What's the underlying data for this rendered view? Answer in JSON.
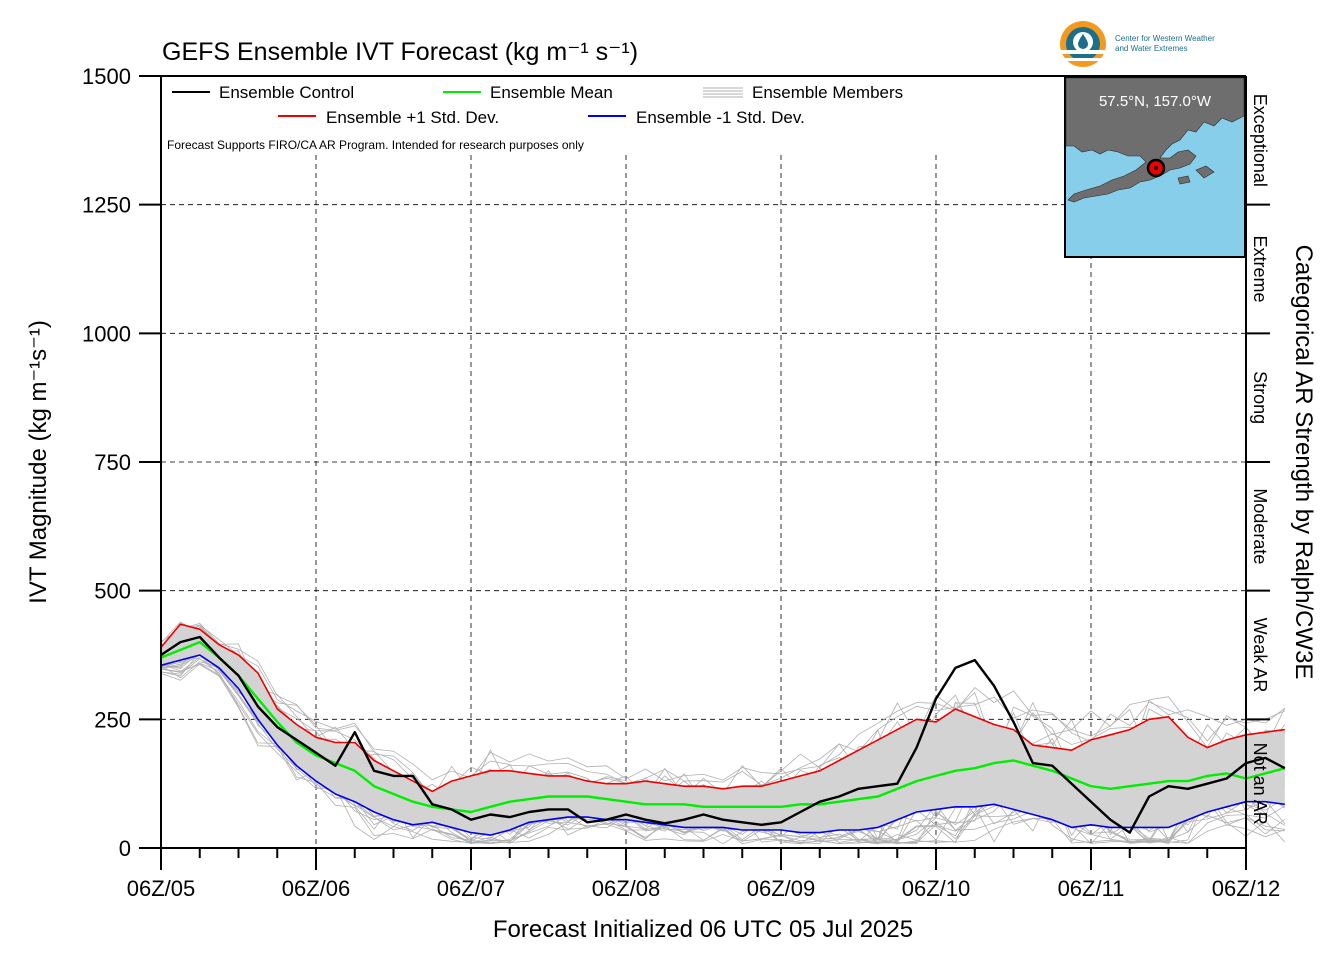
{
  "header": {
    "title": "GEFS Ensemble IVT Forecast (kg m⁻¹ s⁻¹)",
    "logo_text_line1": "Center for Western Weather",
    "logo_text_line2": "and Water Extremes"
  },
  "legend": {
    "control": "Ensemble Control",
    "mean": "Ensemble Mean",
    "members": "Ensemble Members",
    "plus_std": "Ensemble +1 Std. Dev.",
    "minus_std": "Ensemble -1 Std. Dev.",
    "note": "Forecast Supports FIRO/CA AR Program. Intended for research purposes only"
  },
  "inset": {
    "location": "57.5°N, 157.0°W"
  },
  "right_axis": {
    "title": "Categorical AR Strength by Ralph/CW3E",
    "categories": [
      "Exceptional",
      "Extreme",
      "Strong",
      "Moderate",
      "Weak AR",
      "Not an AR"
    ]
  },
  "colors": {
    "control": "#000000",
    "mean": "#00ee00",
    "plus_std": "#ee0000",
    "minus_std": "#0000ee",
    "members": "#b0b0b0",
    "spread_fill": "#d3d3d3",
    "map_water": "#87ceeb",
    "map_land": "#6e6e6e",
    "logo_orange": "#f39a1e",
    "logo_teal": "#1b6f8a"
  },
  "chart_data": {
    "type": "line",
    "title": "GEFS Ensemble IVT Forecast (kg m⁻¹ s⁻¹)",
    "xlabel": "Forecast Initialized 06 UTC 05 Jul 2025",
    "ylabel": "IVT Magnitude (kg m⁻¹s⁻¹)",
    "ylim": [
      0,
      1500
    ],
    "yticks": [
      0,
      250,
      500,
      750,
      1000,
      1250,
      1500
    ],
    "xlim_hours": [
      0,
      168
    ],
    "x_step_hours": 3,
    "xtick_labels": [
      "06Z/05",
      "06Z/06",
      "06Z/07",
      "06Z/08",
      "06Z/09",
      "06Z/10",
      "06Z/11",
      "06Z/12"
    ],
    "grid": "dashed",
    "legend_position": "top-left",
    "series": [
      {
        "name": "Ensemble Control",
        "values": [
          375,
          400,
          410,
          370,
          335,
          275,
          235,
          210,
          185,
          160,
          225,
          150,
          140,
          140,
          85,
          75,
          55,
          65,
          60,
          70,
          75,
          75,
          50,
          55,
          65,
          55,
          48,
          55,
          65,
          55,
          50,
          45,
          50,
          70,
          90,
          100,
          115,
          120,
          125,
          195,
          290,
          350,
          365,
          315,
          245,
          165,
          160,
          125,
          90,
          55,
          30,
          100,
          120,
          115,
          125,
          135,
          165,
          175,
          155
        ]
      },
      {
        "name": "Ensemble Mean",
        "values": [
          370,
          385,
          400,
          370,
          335,
          290,
          245,
          205,
          180,
          165,
          150,
          120,
          105,
          90,
          80,
          75,
          70,
          80,
          90,
          95,
          100,
          100,
          100,
          95,
          90,
          85,
          85,
          85,
          80,
          80,
          80,
          80,
          80,
          85,
          85,
          90,
          95,
          100,
          115,
          130,
          140,
          150,
          155,
          165,
          170,
          160,
          150,
          135,
          120,
          115,
          120,
          125,
          130,
          130,
          140,
          145,
          135,
          145,
          155
        ]
      },
      {
        "name": "Ensemble +1 Std. Dev.",
        "values": [
          390,
          435,
          425,
          395,
          375,
          340,
          270,
          240,
          215,
          205,
          205,
          170,
          150,
          130,
          110,
          130,
          140,
          150,
          150,
          145,
          140,
          140,
          130,
          125,
          125,
          130,
          125,
          120,
          120,
          115,
          120,
          120,
          130,
          140,
          150,
          170,
          190,
          210,
          230,
          250,
          245,
          270,
          255,
          240,
          230,
          200,
          195,
          190,
          210,
          220,
          230,
          250,
          255,
          215,
          195,
          210,
          220,
          225,
          230
        ]
      },
      {
        "name": "Ensemble -1 Std. Dev.",
        "values": [
          355,
          365,
          375,
          350,
          310,
          250,
          200,
          160,
          130,
          105,
          90,
          70,
          55,
          45,
          50,
          40,
          30,
          25,
          35,
          50,
          55,
          60,
          60,
          55,
          55,
          50,
          45,
          40,
          40,
          40,
          35,
          35,
          35,
          30,
          30,
          35,
          35,
          40,
          55,
          70,
          75,
          80,
          80,
          85,
          75,
          65,
          55,
          40,
          45,
          40,
          40,
          40,
          40,
          55,
          70,
          80,
          90,
          90,
          85
        ]
      }
    ]
  }
}
